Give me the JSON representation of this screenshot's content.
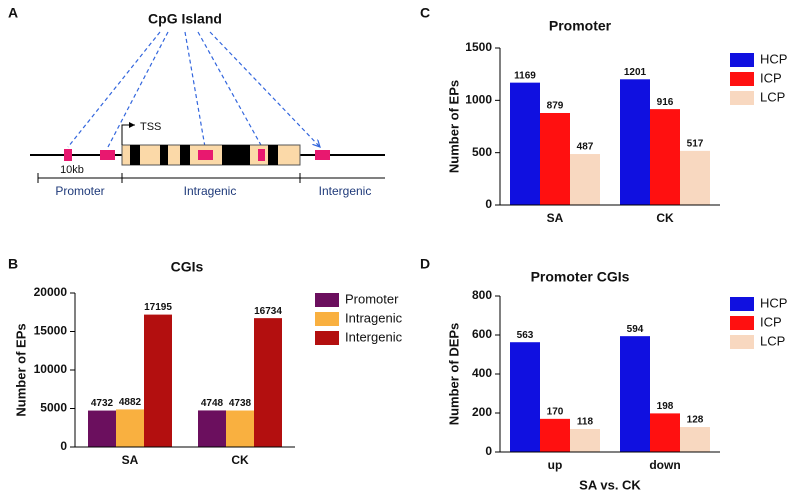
{
  "diagram": {
    "panel": "A",
    "title": "CpG Island",
    "tss": "TSS",
    "scale": "10kb",
    "regions": [
      "Promoter",
      "Intragenic",
      "Intergenic"
    ]
  },
  "chart_data": [
    {
      "type": "bar",
      "panel": "B",
      "title": "CGIs",
      "ylabel": "Number of EPs",
      "categories": [
        "SA",
        "CK"
      ],
      "series": [
        {
          "name": "Promoter",
          "color": "#6b0f5e",
          "values": [
            4732,
            4748
          ]
        },
        {
          "name": "Intragenic",
          "color": "#f9b040",
          "values": [
            4882,
            4738
          ]
        },
        {
          "name": "Intergenic",
          "color": "#b30f0f",
          "values": [
            17195,
            16734
          ]
        }
      ],
      "ylim": [
        0,
        20000
      ],
      "yticks": [
        0,
        5000,
        10000,
        15000,
        20000
      ]
    },
    {
      "type": "bar",
      "panel": "C",
      "title": "Promoter",
      "ylabel": "Number of EPs",
      "categories": [
        "SA",
        "CK"
      ],
      "series": [
        {
          "name": "HCP",
          "color": "#1010e0",
          "values": [
            1169,
            1201
          ]
        },
        {
          "name": "ICP",
          "color": "#ff1010",
          "values": [
            879,
            916
          ]
        },
        {
          "name": "LCP",
          "color": "#f8d8c0",
          "values": [
            487,
            517
          ]
        }
      ],
      "ylim": [
        0,
        1500
      ],
      "yticks": [
        0,
        500,
        1000,
        1500
      ]
    },
    {
      "type": "bar",
      "panel": "D",
      "title": "Promoter CGIs",
      "ylabel": "Number of DEPs",
      "xlabel": "SA vs. CK",
      "categories": [
        "up",
        "down"
      ],
      "series": [
        {
          "name": "HCP",
          "color": "#1010e0",
          "values": [
            563,
            594
          ]
        },
        {
          "name": "ICP",
          "color": "#ff1010",
          "values": [
            170,
            198
          ]
        },
        {
          "name": "LCP",
          "color": "#f8d8c0",
          "values": [
            118,
            128
          ]
        }
      ],
      "ylim": [
        0,
        800
      ],
      "yticks": [
        0,
        200,
        400,
        600,
        800
      ]
    }
  ]
}
